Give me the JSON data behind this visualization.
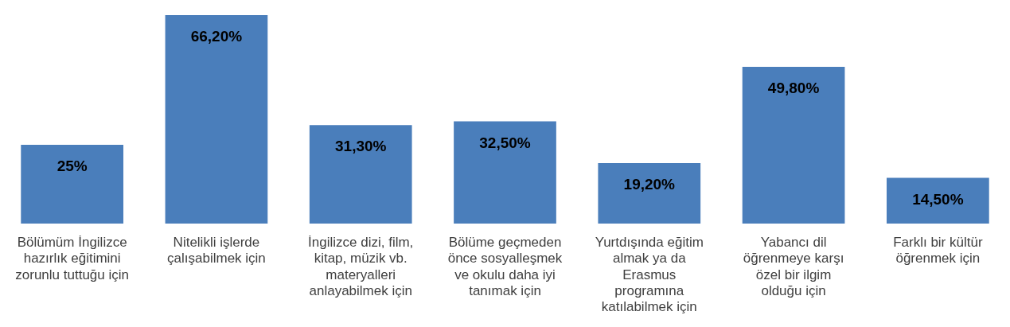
{
  "chart_data": {
    "type": "bar",
    "categories": [
      "Bölümüm İngilizce hazırlık eğitimini zorunlu tuttuğu için",
      "Nitelikli işlerde çalışabilmek için",
      "İngilizce dizi, film, kitap, müzik vb. materyalleri anlayabilmek için",
      "Bölüme geçmeden önce sosyalleşmek ve okulu daha iyi tanımak için",
      "Yurtdışında eğitim almak ya da Erasmus programına katılabilmek için",
      "Yabancı dil öğrenmeye karşı özel bir ilgim olduğu için",
      "Farklı bir kültür öğrenmek için"
    ],
    "values": [
      25,
      66.2,
      31.3,
      32.5,
      19.2,
      49.8,
      14.5
    ],
    "value_labels": [
      "25%",
      "66,20%",
      "31,30%",
      "32,50%",
      "19,20%",
      "49,80%",
      "14,50%"
    ],
    "color": "#4a7ebb",
    "legend": false,
    "grid": false
  }
}
